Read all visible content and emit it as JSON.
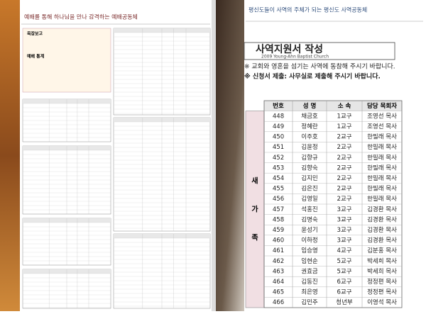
{
  "left_page": {
    "header": "예배를 통해 하나님을 만나 감격하는 예배공동체",
    "box_title": "목장보고",
    "stats_title": "예배 통계"
  },
  "right_page": {
    "header": "평신도들이 사역의 주체가 되는 평신도 사역공동체",
    "title": "사역지원서 작성",
    "subtitle": "2009 Young-Ahn Baptist Church",
    "notes": [
      "※ 교회와 영혼을 섬기는 사역에 동참해 주시기 바랍니다.",
      "※ 신청서 제출: 사무실로 제출해 주시기 바랍니다."
    ],
    "table": {
      "side_label": [
        "새",
        "가",
        "족"
      ],
      "header": [
        "번호",
        "성 명",
        "소 속",
        "담당 목회자"
      ],
      "rows": [
        [
          "448",
          "채금호",
          "1교구",
          "조영선 목사"
        ],
        [
          "449",
          "정혜란",
          "1교구",
          "조영선 목사"
        ],
        [
          "450",
          "이주호",
          "2교구",
          "한필래 목사"
        ],
        [
          "451",
          "김윤정",
          "2교구",
          "한필래 목사"
        ],
        [
          "452",
          "김향규",
          "2교구",
          "한필래 목사"
        ],
        [
          "453",
          "김향숙",
          "2교구",
          "한필래 목사"
        ],
        [
          "454",
          "김지민",
          "2교구",
          "한필래 목사"
        ],
        [
          "455",
          "김은진",
          "2교구",
          "한필래 목사"
        ],
        [
          "456",
          "김영일",
          "2교구",
          "한필래 목사"
        ],
        [
          "457",
          "석홍진",
          "3교구",
          "김경환 목사"
        ],
        [
          "458",
          "김명숙",
          "3교구",
          "김경환 목사"
        ],
        [
          "459",
          "윤성기",
          "3교구",
          "김경환 목사"
        ],
        [
          "460",
          "이하정",
          "3교구",
          "김경환 목사"
        ],
        [
          "461",
          "임승영",
          "4교구",
          "김분홍 목사"
        ],
        [
          "462",
          "임현순",
          "5교구",
          "박세희 목사"
        ],
        [
          "463",
          "권효금",
          "5교구",
          "박세희 목사"
        ],
        [
          "464",
          "김동진",
          "6교구",
          "정정편 목사"
        ],
        [
          "465",
          "최은영",
          "6교구",
          "정정편 목사"
        ],
        [
          "466",
          "김민주",
          "청년부",
          "이영석 목사"
        ]
      ]
    }
  }
}
